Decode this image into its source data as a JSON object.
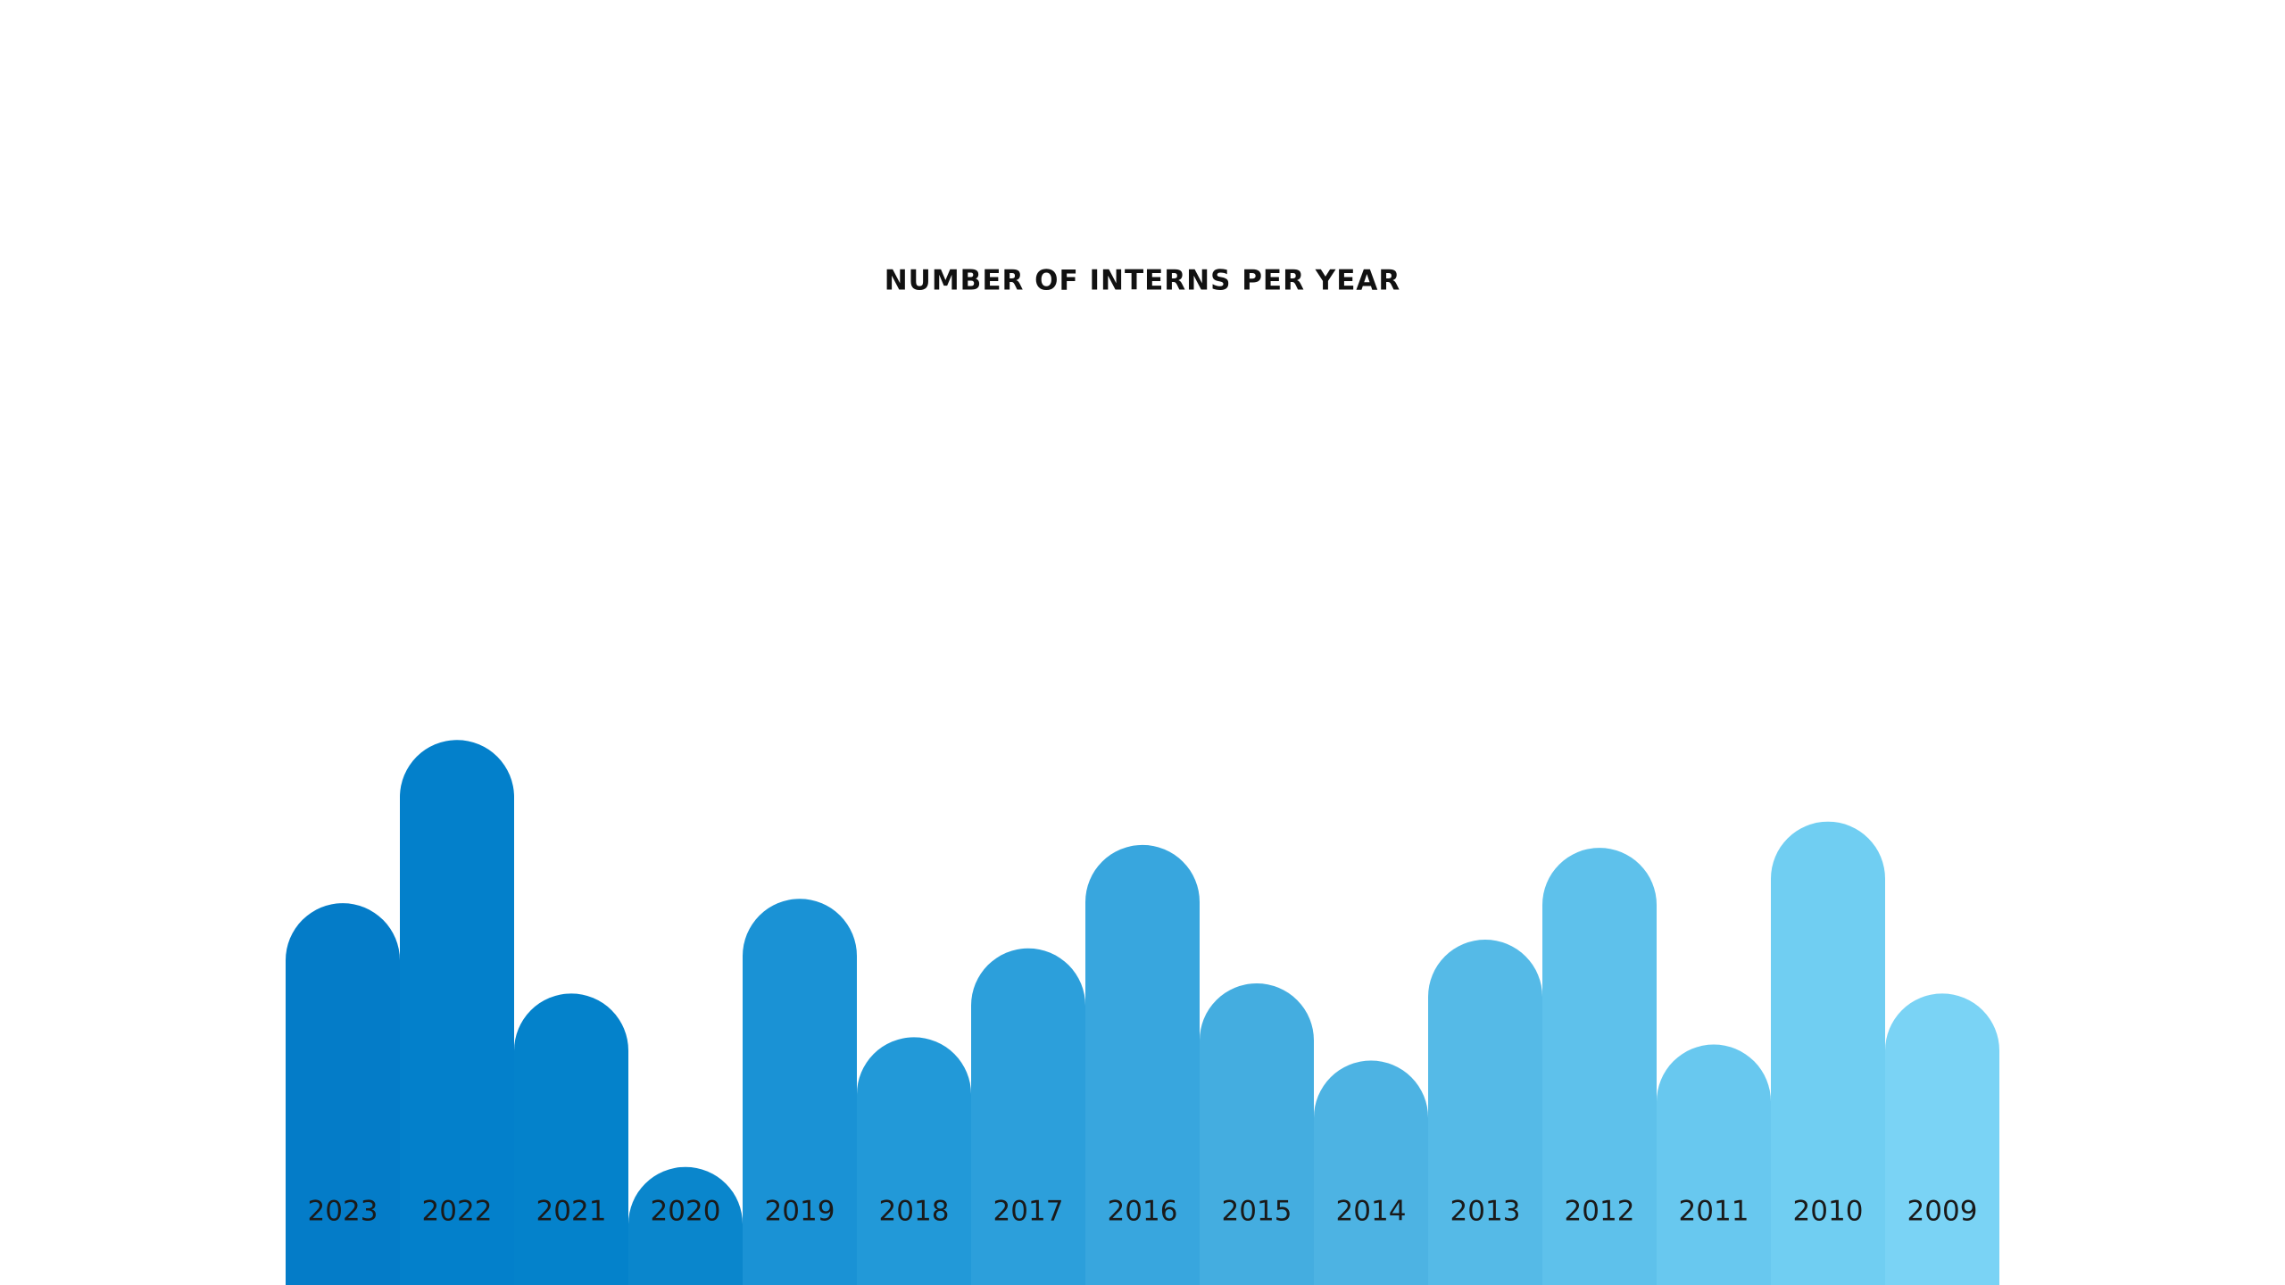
{
  "chart_data": {
    "type": "bar",
    "title": "NUMBER OF INTERNS PER YEAR",
    "categories": [
      "2023",
      "2022",
      "2021",
      "2020",
      "2019",
      "2018",
      "2017",
      "2016",
      "2015",
      "2014",
      "2013",
      "2012",
      "2011",
      "2010",
      "2009"
    ],
    "values": [
      262,
      374,
      200,
      81,
      265,
      170,
      231,
      302,
      207,
      154,
      237,
      300,
      165,
      318,
      200
    ],
    "colors": [
      "#047cc8",
      "#0380cb",
      "#0482cb",
      "#0a86cc",
      "#1a92d5",
      "#2299d8",
      "#2c9fdb",
      "#38a6de",
      "#44ade0",
      "#4db3e3",
      "#55bae7",
      "#5ec1eb",
      "#68c8ef",
      "#70cef2",
      "#7ad3f5"
    ]
  }
}
